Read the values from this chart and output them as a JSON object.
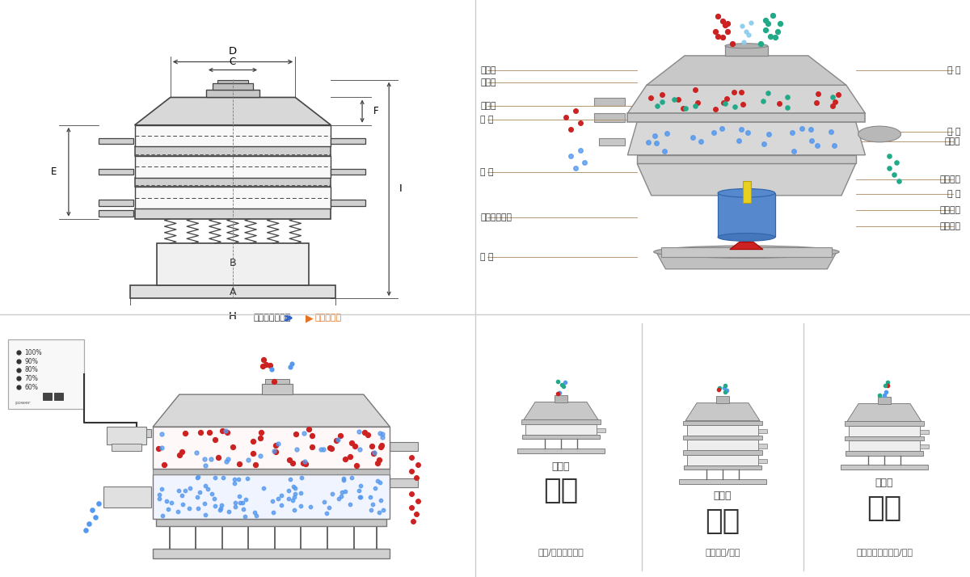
{
  "bg_color": "#ffffff",
  "sep_color": "#cccccc",
  "nav_bg": "#f0f0f0",
  "lc": "#444444",
  "lc2": "#b0906a",
  "label_left": [
    "进料口",
    "防尘盖",
    "出料口",
    "束 环",
    "弹 簧",
    "运输固定螺栓",
    "机 座"
  ],
  "label_right": [
    "筛 网",
    "网 架",
    "加重块",
    "上部重锤",
    "筛 盘",
    "振动电机",
    "下部重锤"
  ],
  "bottom_types": [
    "单层式",
    "三层式",
    "双层式"
  ],
  "bottom_titles": [
    "分级",
    "过滤",
    "除杂"
  ],
  "bottom_descs": [
    "颗粒/粉末准确分级",
    "去除异物/结块",
    "去除液体中的颗粒/异物"
  ],
  "nav_left_text": "外形尺寸示意图",
  "nav_right_text": "结构示意图",
  "red": "#cc2222",
  "blue": "#5599ee",
  "teal": "#22aa88",
  "yellow": "#e8d020",
  "motor_blue": "#5588cc",
  "gray_dk": "#888888",
  "gray_md": "#c0c0c0",
  "gray_lt": "#e8e8e8",
  "ctrl_pcts": [
    "100%",
    "90%",
    "80%",
    "70%",
    "60%"
  ]
}
